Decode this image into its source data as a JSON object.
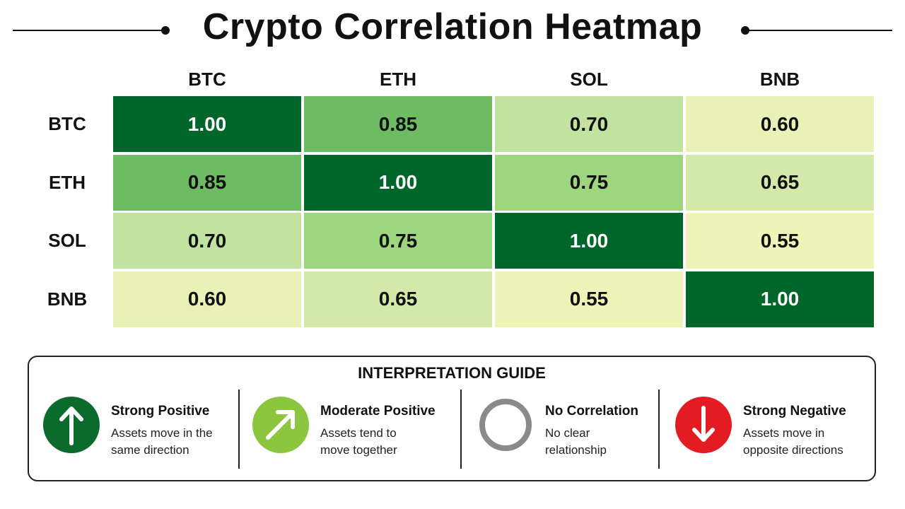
{
  "title": "Crypto Correlation Heatmap",
  "chart_data": {
    "type": "heatmap",
    "title": "Crypto Correlation Heatmap",
    "columns": [
      "BTC",
      "ETH",
      "SOL",
      "BNB"
    ],
    "rows": [
      "BTC",
      "ETH",
      "SOL",
      "BNB"
    ],
    "values": [
      [
        1.0,
        0.85,
        0.7,
        0.6
      ],
      [
        0.85,
        1.0,
        0.75,
        0.65
      ],
      [
        0.7,
        0.75,
        1.0,
        0.55
      ],
      [
        0.6,
        0.65,
        0.55,
        1.0
      ]
    ],
    "value_labels": [
      [
        "1.00",
        "0.85",
        "0.70",
        "0.60"
      ],
      [
        "0.85",
        "1.00",
        "0.75",
        "0.65"
      ],
      [
        "0.70",
        "0.75",
        "1.00",
        "0.55"
      ],
      [
        "0.60",
        "0.65",
        "0.55",
        "1.00"
      ]
    ],
    "colors": {
      "1.00": "#006629",
      "0.85": "#6dbb63",
      "0.75": "#9ed57f",
      "0.70": "#c2e3a0",
      "0.65": "#d4e9a9",
      "0.60": "#eaf1b6",
      "0.55": "#eef3b8"
    }
  },
  "guide": {
    "title": "INTERPRETATION GUIDE",
    "items": [
      {
        "label": "Strong Positive",
        "desc_lines": [
          "Assets move in the",
          "same direction"
        ],
        "icon": "arrow-up-icon",
        "color": "#0b6b2c"
      },
      {
        "label": "Moderate Positive",
        "desc_lines": [
          "Assets tend to",
          "move together"
        ],
        "icon": "arrow-up-right-icon",
        "color": "#8cc63f"
      },
      {
        "label": "No Correlation",
        "desc_lines": [
          "No clear",
          "relationship"
        ],
        "icon": "ring-icon",
        "color": "#8a8a8a"
      },
      {
        "label": "Strong Negative",
        "desc_lines": [
          "Assets move in",
          "opposite directions"
        ],
        "icon": "arrow-down-icon",
        "color": "#e31b23"
      }
    ]
  }
}
